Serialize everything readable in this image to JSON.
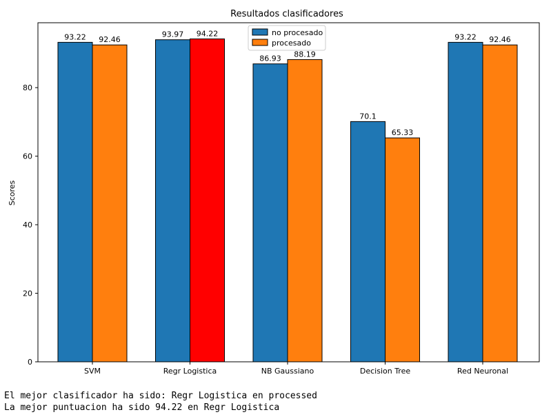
{
  "chart_data": {
    "type": "bar",
    "title": "Resultados clasificadores",
    "xlabel": "",
    "ylabel": "Scores",
    "ylim": [
      0,
      98.93
    ],
    "yticks": [
      0,
      20,
      40,
      60,
      80
    ],
    "categories": [
      "SVM",
      "Regr Logistica",
      "NB Gaussiano",
      "Decision Tree",
      "Red Neuronal"
    ],
    "series": [
      {
        "name": "no procesado",
        "color": "#1f77b4",
        "values": [
          93.22,
          93.97,
          86.93,
          70.1,
          93.22
        ],
        "value_labels": [
          "93.22",
          "93.97",
          "86.93",
          "70.1",
          "93.22"
        ]
      },
      {
        "name": "procesado",
        "color": "#ff7f0e",
        "values": [
          92.46,
          94.22,
          88.19,
          65.33,
          92.46
        ],
        "value_labels": [
          "92.46",
          "94.22",
          "88.19",
          "65.33",
          "92.46"
        ]
      }
    ],
    "highlight": {
      "series_index": 1,
      "category_index": 1,
      "color": "#ff0000"
    },
    "legend_position": "top-center",
    "grid": false
  },
  "output": {
    "line1": "El mejor clasificador ha sido: Regr Logistica en processed",
    "line2": "La mejor puntuacion ha sido 94.22 en Regr Logistica"
  }
}
